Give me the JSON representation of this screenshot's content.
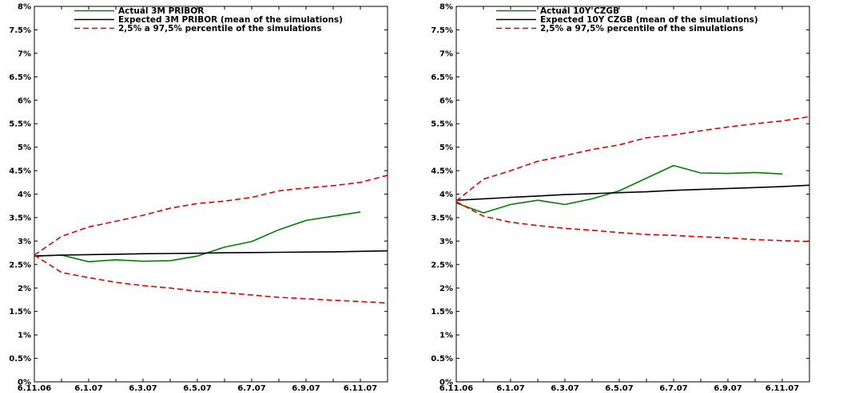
{
  "chart_data": [
    {
      "type": "line",
      "x": [
        "6.11.06",
        "6.12.06",
        "6.1.07",
        "6.2.07",
        "6.3.07",
        "6.4.07",
        "6.5.07",
        "6.6.07",
        "6.7.07",
        "6.8.07",
        "6.9.07",
        "6.10.07",
        "6.11.07",
        "6.12.07"
      ],
      "x_tick_labels": [
        "6.11.06",
        "6.1.07",
        "6.3.07",
        "6.5.07",
        "6.7.07",
        "6.9.07",
        "6.11.07"
      ],
      "y_tick_labels": [
        "0%",
        "0.5%",
        "1%",
        "1.5%",
        "2%",
        "2.5%",
        "3%",
        "3.5%",
        "4%",
        "4.5%",
        "5%",
        "5.5%",
        "6%",
        "6.5%",
        "7%",
        "7.5%",
        "8%"
      ],
      "ylim": [
        0,
        8
      ],
      "legend": {
        "position": "top",
        "entries": [
          "Actual 3M PRIBOR",
          "Expected 3M PRIBOR (mean of the simulations)",
          "2,5% a 97,5% percentile of the simulations"
        ]
      },
      "series": [
        {
          "name": "Actual 3M PRIBOR",
          "color": "#008000",
          "dash": "solid",
          "values": [
            2.68,
            2.7,
            2.56,
            2.6,
            2.57,
            2.58,
            2.68,
            2.87,
            2.99,
            3.24,
            3.44,
            3.53,
            3.62,
            null
          ]
        },
        {
          "name": "Expected 3M PRIBOR (mean of the simulations)",
          "color": "#000000",
          "dash": "solid",
          "values": [
            2.68,
            2.7,
            2.71,
            2.72,
            2.73,
            2.735,
            2.74,
            2.75,
            2.755,
            2.76,
            2.765,
            2.77,
            2.78,
            2.79
          ]
        },
        {
          "name": "2,5% a 97,5% percentile of the simulations",
          "color": "#e00000",
          "dash": "dashed",
          "values": [
            2.7,
            3.1,
            3.3,
            3.42,
            3.55,
            3.7,
            3.8,
            3.85,
            3.93,
            4.07,
            4.13,
            4.18,
            4.25,
            4.4
          ]
        },
        {
          "name": "",
          "color": "#e00000",
          "dash": "dashed",
          "values": [
            2.7,
            2.33,
            2.22,
            2.12,
            2.05,
            2.0,
            1.93,
            1.9,
            1.85,
            1.8,
            1.77,
            1.74,
            1.71,
            1.68
          ]
        }
      ]
    },
    {
      "type": "line",
      "x": [
        "6.11.06",
        "6.12.06",
        "6.1.07",
        "6.2.07",
        "6.3.07",
        "6.4.07",
        "6.5.07",
        "6.6.07",
        "6.7.07",
        "6.8.07",
        "6.9.07",
        "6.10.07",
        "6.11.07",
        "6.12.07"
      ],
      "x_tick_labels": [
        "6.11.06",
        "6.1.07",
        "6.3.07",
        "6.5.07",
        "6.7.07",
        "6.9.07",
        "6.11.07"
      ],
      "y_tick_labels": [
        "0%",
        "0.5%",
        "1%",
        "1.5%",
        "2%",
        "2.5%",
        "3%",
        "3.5%",
        "4%",
        "4.5%",
        "5%",
        "5.5%",
        "6%",
        "6.5%",
        "7%",
        "7.5%",
        "8%"
      ],
      "ylim": [
        0,
        8
      ],
      "legend": {
        "position": "top",
        "entries": [
          "Actual 10Y CZGB",
          "Expected 10Y CZGB (mean of the simulations)",
          "2,5% a 97,5% percentile of the simulations"
        ]
      },
      "series": [
        {
          "name": "Actual 10Y CZGB",
          "color": "#008000",
          "dash": "solid",
          "values": [
            3.81,
            3.6,
            3.78,
            3.87,
            3.78,
            3.9,
            4.07,
            4.34,
            4.61,
            4.45,
            4.44,
            4.46,
            4.43,
            null
          ]
        },
        {
          "name": "Expected 10Y CZGB (mean of the simulations)",
          "color": "#000000",
          "dash": "solid",
          "values": [
            3.87,
            3.9,
            3.93,
            3.96,
            3.99,
            4.01,
            4.03,
            4.05,
            4.08,
            4.1,
            4.12,
            4.14,
            4.16,
            4.19
          ]
        },
        {
          "name": "2,5% a 97,5% percentile of the simulations",
          "color": "#e00000",
          "dash": "dashed",
          "values": [
            3.85,
            4.32,
            4.5,
            4.7,
            4.82,
            4.95,
            5.05,
            5.2,
            5.26,
            5.35,
            5.43,
            5.5,
            5.56,
            5.65
          ]
        },
        {
          "name": "",
          "color": "#e00000",
          "dash": "dashed",
          "values": [
            3.84,
            3.53,
            3.4,
            3.33,
            3.27,
            3.23,
            3.18,
            3.14,
            3.12,
            3.09,
            3.07,
            3.03,
            3.01,
            2.99
          ]
        }
      ]
    }
  ]
}
